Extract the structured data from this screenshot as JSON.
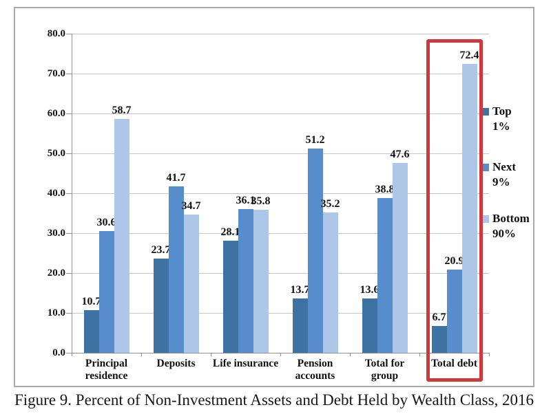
{
  "figure": {
    "caption": "Figure 9. Percent of Non-Investment Assets and Debt Held by Wealth Class, 2016"
  },
  "chart_data": {
    "type": "bar",
    "categories": [
      "Principal\nresidence",
      "Deposits",
      "Life insurance",
      "Pension\naccounts",
      "Total for\ngroup",
      "Total debt"
    ],
    "series": [
      {
        "name": "Top\n1%",
        "color": "#3e72a3",
        "values": [
          10.7,
          23.7,
          28.1,
          13.7,
          13.6,
          6.7
        ]
      },
      {
        "name": "Next\n9%",
        "color": "#578dcd",
        "values": [
          30.6,
          41.7,
          36.1,
          51.2,
          38.8,
          20.9
        ]
      },
      {
        "name": "Bottom\n90%",
        "color": "#aec6e8",
        "values": [
          58.7,
          34.7,
          35.8,
          35.2,
          47.6,
          72.4
        ]
      }
    ],
    "title": "",
    "xlabel": "",
    "ylabel": "",
    "ylim": [
      0,
      80
    ],
    "ytick_step": 10,
    "ytick_labels": [
      "0.0",
      "10.0",
      "20.0",
      "30.0",
      "40.0",
      "50.0",
      "60.0",
      "70.0",
      "80.0"
    ],
    "grid": true,
    "legend_position": "right",
    "value_labels_shown": true,
    "highlight": {
      "category": "Total debt",
      "color": "#cd393c"
    }
  }
}
